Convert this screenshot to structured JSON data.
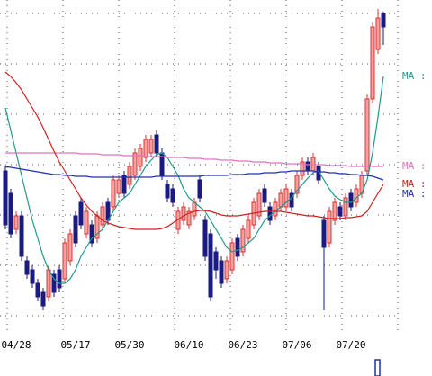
{
  "chart_data": {
    "type": "candlestick",
    "ylim": [
      0,
      370
    ],
    "grid": true,
    "up_color": "#e03030",
    "up_fill": "#f4a3a3",
    "down_color": "#1a1a80",
    "categories": [
      null,
      null,
      "04/28",
      null,
      null,
      null,
      null,
      null,
      null,
      null,
      null,
      null,
      null,
      "05/17",
      null,
      null,
      null,
      null,
      null,
      null,
      null,
      null,
      null,
      "05/30",
      null,
      null,
      null,
      null,
      null,
      null,
      null,
      null,
      null,
      null,
      "06/10",
      null,
      null,
      null,
      null,
      null,
      null,
      null,
      null,
      null,
      "06/23",
      null,
      null,
      null,
      null,
      null,
      null,
      null,
      null,
      null,
      "07/06",
      null,
      null,
      null,
      null,
      null,
      null,
      null,
      null,
      null,
      "07/20",
      null,
      null,
      null,
      null,
      null,
      null
    ],
    "open": [
      180,
      155,
      115,
      130,
      80,
      70,
      55,
      45,
      40,
      65,
      70,
      60,
      80,
      130,
      145,
      110,
      120,
      105,
      120,
      145,
      140,
      155,
      175,
      165,
      175,
      185,
      195,
      200,
      220,
      200,
      165,
      160,
      115,
      125,
      120,
      130,
      170,
      125,
      110,
      90,
      80,
      60,
      70,
      105,
      90,
      105,
      120,
      130,
      160,
      140,
      130,
      140,
      140,
      155,
      155,
      175,
      190,
      180,
      185,
      125,
      100,
      125,
      140,
      130,
      155,
      145,
      155,
      180,
      260,
      315,
      355
    ],
    "high": [
      185,
      160,
      135,
      135,
      85,
      75,
      60,
      50,
      75,
      70,
      75,
      105,
      115,
      135,
      150,
      140,
      125,
      135,
      145,
      150,
      175,
      175,
      180,
      190,
      205,
      210,
      220,
      220,
      225,
      205,
      170,
      165,
      140,
      145,
      140,
      150,
      175,
      130,
      115,
      95,
      85,
      85,
      105,
      110,
      120,
      130,
      150,
      160,
      165,
      145,
      150,
      160,
      165,
      160,
      180,
      195,
      195,
      200,
      190,
      130,
      140,
      150,
      145,
      155,
      160,
      165,
      180,
      265,
      345,
      360,
      357
    ],
    "low": [
      115,
      105,
      110,
      80,
      60,
      50,
      35,
      25,
      35,
      40,
      45,
      55,
      75,
      95,
      115,
      105,
      95,
      100,
      115,
      120,
      135,
      150,
      150,
      160,
      170,
      180,
      190,
      195,
      195,
      170,
      145,
      140,
      110,
      120,
      115,
      125,
      145,
      80,
      35,
      60,
      50,
      55,
      65,
      80,
      85,
      100,
      115,
      125,
      140,
      120,
      125,
      135,
      135,
      135,
      150,
      170,
      175,
      175,
      165,
      25,
      95,
      120,
      125,
      125,
      135,
      140,
      150,
      175,
      255,
      310,
      320
    ],
    "close": [
      120,
      110,
      130,
      85,
      65,
      55,
      40,
      30,
      70,
      45,
      50,
      100,
      110,
      100,
      120,
      135,
      100,
      130,
      140,
      125,
      170,
      170,
      155,
      185,
      200,
      205,
      215,
      215,
      200,
      175,
      150,
      145,
      135,
      140,
      135,
      145,
      150,
      85,
      40,
      70,
      55,
      80,
      100,
      85,
      115,
      125,
      145,
      155,
      145,
      125,
      145,
      155,
      160,
      140,
      175,
      190,
      180,
      195,
      170,
      95,
      135,
      145,
      130,
      150,
      140,
      160,
      175,
      260,
      340,
      350,
      340
    ],
    "series": [
      {
        "name": "MA :",
        "color": "#1e9a8a",
        "values": [
          250,
          225,
          200,
          175,
          150,
          125,
          105,
          85,
          70,
          60,
          55,
          55,
          60,
          70,
          85,
          95,
          105,
          110,
          115,
          125,
          135,
          145,
          150,
          155,
          165,
          175,
          185,
          192,
          198,
          200,
          195,
          185,
          175,
          160,
          150,
          145,
          140,
          135,
          125,
          115,
          105,
          95,
          90,
          92,
          95,
          100,
          105,
          115,
          125,
          130,
          135,
          140,
          145,
          150,
          158,
          165,
          172,
          178,
          180,
          170,
          160,
          152,
          148,
          145,
          145,
          150,
          155,
          170,
          200,
          240,
          285
        ]
      },
      {
        "name": "MA :",
        "color": "#e070c0",
        "values": [
          200,
          200,
          200,
          200,
          200,
          200,
          200,
          200,
          200,
          200,
          200,
          200,
          200,
          200,
          199,
          199,
          199,
          199,
          198,
          198,
          198,
          198,
          197,
          197,
          197,
          197,
          196,
          196,
          196,
          196,
          195,
          195,
          195,
          195,
          194,
          194,
          194,
          193,
          193,
          193,
          192,
          192,
          192,
          191,
          191,
          191,
          190,
          190,
          190,
          189,
          189,
          189,
          188,
          188,
          188,
          188,
          187,
          187,
          187,
          187,
          186,
          186,
          186,
          186,
          185,
          185,
          185,
          185,
          185,
          185,
          185
        ]
      },
      {
        "name": "MA :",
        "color": "#d02020",
        "values": [
          290,
          285,
          278,
          270,
          260,
          250,
          240,
          228,
          215,
          202,
          190,
          180,
          170,
          160,
          150,
          142,
          135,
          130,
          125,
          122,
          120,
          118,
          117,
          116,
          115,
          115,
          115,
          115,
          115,
          116,
          118,
          122,
          126,
          130,
          133,
          135,
          136,
          136,
          135,
          133,
          131,
          130,
          130,
          130,
          131,
          132,
          133,
          134,
          135,
          135,
          135,
          135,
          134,
          133,
          132,
          131,
          130,
          130,
          129,
          128,
          127,
          127,
          127,
          128,
          128,
          129,
          130,
          135,
          145,
          155,
          165
        ]
      },
      {
        "name": "MA :",
        "color": "#2030b0",
        "values": [
          185,
          184,
          183,
          182,
          181,
          180,
          179,
          178,
          177,
          176,
          176,
          175,
          175,
          174,
          174,
          174,
          173,
          173,
          173,
          173,
          173,
          173,
          173,
          173,
          173,
          173,
          173,
          173,
          174,
          174,
          174,
          174,
          174,
          174,
          174,
          174,
          174,
          175,
          175,
          175,
          175,
          175,
          176,
          176,
          176,
          177,
          177,
          177,
          178,
          178,
          178,
          179,
          179,
          180,
          180,
          180,
          180,
          180,
          179,
          179,
          178,
          178,
          177,
          177,
          176,
          176,
          175,
          175,
          174,
          172,
          170
        ]
      }
    ]
  }
}
